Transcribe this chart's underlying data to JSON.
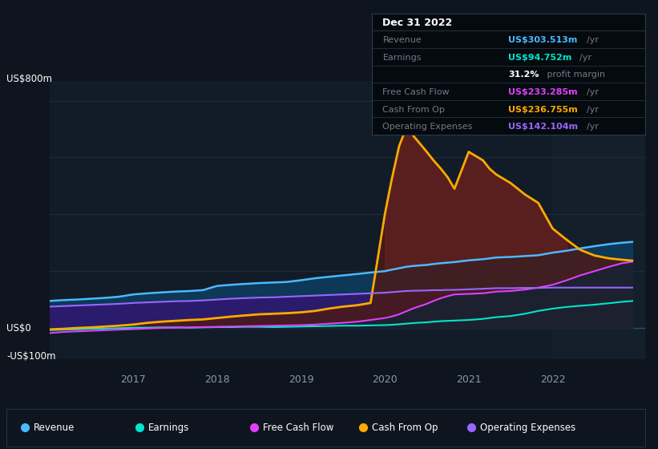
{
  "bg_color": "#0e151e",
  "plot_bg_color": "#111c28",
  "grid_color": "#1e2d3d",
  "legend_bg": "#0e151e",
  "ylabel_800": "US$800m",
  "ylabel_zero": "US$0",
  "ylabel_neg": "-US$100m",
  "x_ticks": [
    2017,
    2018,
    2019,
    2020,
    2021,
    2022
  ],
  "xlim": [
    2016.0,
    2023.1
  ],
  "ylim": [
    -110,
    870
  ],
  "info_box": {
    "date": "Dec 31 2022",
    "rows": [
      {
        "label": "Revenue",
        "value": "US$303.513m",
        "unit": "/yr",
        "value_color": "#4db8ff"
      },
      {
        "label": "Earnings",
        "value": "US$94.752m",
        "unit": "/yr",
        "value_color": "#00e5cc"
      },
      {
        "label": "",
        "value": "31.2%",
        "unit": " profit margin",
        "value_color": "#ffffff"
      },
      {
        "label": "Free Cash Flow",
        "value": "US$233.285m",
        "unit": "/yr",
        "value_color": "#e040fb"
      },
      {
        "label": "Cash From Op",
        "value": "US$236.755m",
        "unit": "/yr",
        "value_color": "#ffaa00"
      },
      {
        "label": "Operating Expenses",
        "value": "US$142.104m",
        "unit": "/yr",
        "value_color": "#9966ff"
      }
    ]
  },
  "legend": [
    {
      "label": "Revenue",
      "color": "#4db8ff"
    },
    {
      "label": "Earnings",
      "color": "#00e5cc"
    },
    {
      "label": "Free Cash Flow",
      "color": "#e040fb"
    },
    {
      "label": "Cash From Op",
      "color": "#ffaa00"
    },
    {
      "label": "Operating Expenses",
      "color": "#9966ff"
    }
  ],
  "series": {
    "x": [
      2016.0,
      2016.17,
      2016.33,
      2016.5,
      2016.67,
      2016.83,
      2017.0,
      2017.17,
      2017.33,
      2017.5,
      2017.67,
      2017.83,
      2018.0,
      2018.17,
      2018.33,
      2018.5,
      2018.67,
      2018.83,
      2019.0,
      2019.17,
      2019.33,
      2019.5,
      2019.67,
      2019.83,
      2020.0,
      2020.08,
      2020.17,
      2020.25,
      2020.33,
      2020.5,
      2020.58,
      2020.67,
      2020.75,
      2020.83,
      2021.0,
      2021.17,
      2021.25,
      2021.33,
      2021.5,
      2021.67,
      2021.83,
      2022.0,
      2022.17,
      2022.33,
      2022.5,
      2022.67,
      2022.83,
      2022.95
    ],
    "revenue": [
      95,
      98,
      100,
      103,
      106,
      110,
      118,
      122,
      125,
      128,
      130,
      133,
      148,
      152,
      155,
      158,
      160,
      162,
      168,
      175,
      180,
      185,
      190,
      195,
      200,
      205,
      210,
      215,
      218,
      222,
      225,
      228,
      230,
      232,
      238,
      242,
      245,
      248,
      250,
      253,
      256,
      265,
      272,
      280,
      288,
      295,
      300,
      303
    ],
    "earnings": [
      -8,
      -6,
      -5,
      -3,
      -2,
      -1,
      1,
      1,
      2,
      2,
      1,
      2,
      3,
      3,
      4,
      4,
      3,
      4,
      5,
      6,
      7,
      8,
      8,
      9,
      10,
      11,
      13,
      15,
      17,
      20,
      22,
      24,
      25,
      26,
      28,
      32,
      35,
      38,
      42,
      50,
      60,
      68,
      74,
      78,
      82,
      87,
      92,
      95
    ],
    "free_cash_flow": [
      -18,
      -14,
      -12,
      -10,
      -8,
      -6,
      -4,
      -2,
      0,
      1,
      2,
      3,
      4,
      5,
      6,
      7,
      8,
      9,
      10,
      12,
      15,
      18,
      22,
      28,
      35,
      40,
      48,
      58,
      68,
      85,
      95,
      105,
      112,
      118,
      120,
      122,
      125,
      128,
      130,
      135,
      142,
      152,
      168,
      185,
      200,
      215,
      228,
      233
    ],
    "cash_from_op": [
      -5,
      -3,
      0,
      2,
      5,
      8,
      12,
      18,
      22,
      25,
      28,
      30,
      35,
      40,
      44,
      48,
      50,
      52,
      55,
      60,
      68,
      75,
      80,
      88,
      400,
      520,
      640,
      700,
      680,
      620,
      590,
      560,
      530,
      490,
      620,
      590,
      560,
      540,
      510,
      470,
      440,
      350,
      310,
      275,
      255,
      245,
      240,
      237
    ],
    "operating_expenses": [
      75,
      77,
      79,
      81,
      83,
      85,
      88,
      90,
      92,
      94,
      95,
      97,
      100,
      103,
      105,
      107,
      108,
      110,
      112,
      114,
      116,
      118,
      120,
      122,
      124,
      126,
      128,
      130,
      131,
      132,
      133,
      133,
      134,
      134,
      136,
      138,
      139,
      140,
      140,
      141,
      141,
      142,
      142,
      142,
      142,
      142,
      142,
      142
    ]
  }
}
